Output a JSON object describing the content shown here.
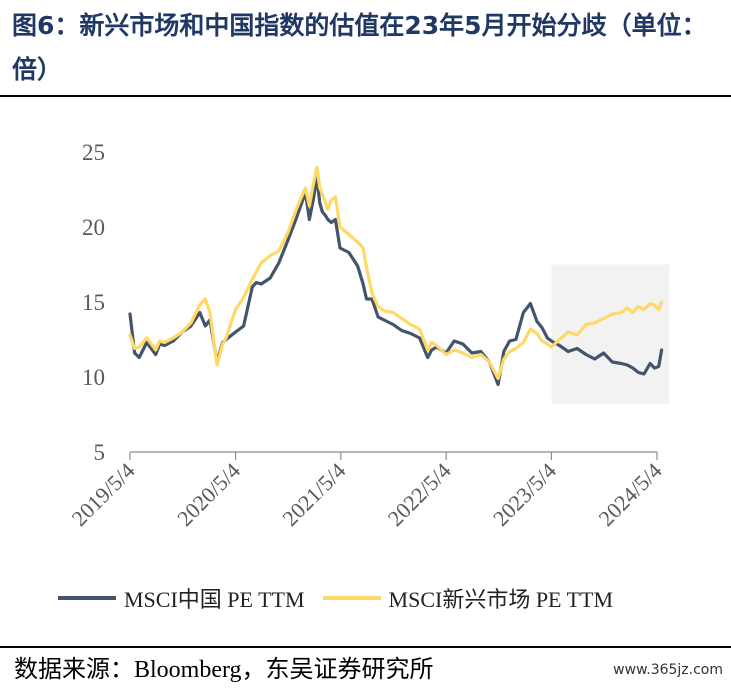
{
  "header": {
    "title": "图6：新兴市场和中国指数的估值在23年5月开始分歧（单位：倍）"
  },
  "footer": {
    "source": "数据来源：Bloomberg，东吴证券研究所",
    "watermark": "www.365jz.com"
  },
  "chart_data": {
    "type": "line",
    "title": "",
    "xlabel": "",
    "ylabel": "",
    "ylim": [
      5,
      25
    ],
    "yticks": [
      5,
      10,
      15,
      20,
      25
    ],
    "xlim": [
      "2019-05-04",
      "2024-05-20"
    ],
    "xticks": [
      "2019/5/4",
      "2020/5/4",
      "2021/5/4",
      "2022/5/4",
      "2023/5/4",
      "2024/5/4"
    ],
    "grid": false,
    "legend_position": "bottom",
    "highlight_region": {
      "x_start": "2023-05-04",
      "x_end": "2024-06-15",
      "y_start": 8.2,
      "y_end": 17.5
    },
    "series": [
      {
        "name": "MSCI中国 PE TTM",
        "color": "#44546a",
        "x": [
          "2019-05-04",
          "2019-05-20",
          "2019-06-05",
          "2019-07-01",
          "2019-08-01",
          "2019-08-15",
          "2019-09-01",
          "2019-10-01",
          "2019-11-01",
          "2019-12-01",
          "2020-01-01",
          "2020-01-20",
          "2020-02-05",
          "2020-03-01",
          "2020-03-20",
          "2020-04-01",
          "2020-05-04",
          "2020-06-01",
          "2020-07-01",
          "2020-07-15",
          "2020-08-01",
          "2020-09-01",
          "2020-10-01",
          "2020-11-01",
          "2020-12-01",
          "2021-01-01",
          "2021-01-15",
          "2021-01-28",
          "2021-02-10",
          "2021-02-20",
          "2021-03-01",
          "2021-03-10",
          "2021-03-20",
          "2021-04-01",
          "2021-04-15",
          "2021-05-01",
          "2021-06-01",
          "2021-07-01",
          "2021-07-20",
          "2021-08-01",
          "2021-08-20",
          "2021-09-10",
          "2021-10-01",
          "2021-11-01",
          "2021-12-01",
          "2022-01-01",
          "2022-02-01",
          "2022-03-01",
          "2022-03-15",
          "2022-04-01",
          "2022-05-04",
          "2022-06-01",
          "2022-07-01",
          "2022-08-01",
          "2022-09-01",
          "2022-10-01",
          "2022-10-31",
          "2022-11-20",
          "2022-12-10",
          "2023-01-01",
          "2023-01-27",
          "2023-02-20",
          "2023-03-15",
          "2023-04-01",
          "2023-04-20",
          "2023-05-04",
          "2023-06-01",
          "2023-07-01",
          "2023-08-01",
          "2023-09-01",
          "2023-10-01",
          "2023-11-01",
          "2023-12-01",
          "2024-01-01",
          "2024-01-22",
          "2024-02-10",
          "2024-03-01",
          "2024-03-20",
          "2024-04-10",
          "2024-04-25",
          "2024-05-10",
          "2024-05-20"
        ],
        "values": [
          14.2,
          11.6,
          11.3,
          12.3,
          11.5,
          12.2,
          12.1,
          12.4,
          13.0,
          13.4,
          14.3,
          13.4,
          13.8,
          11.0,
          12.3,
          12.5,
          13.0,
          13.4,
          16.0,
          16.3,
          16.2,
          16.6,
          17.6,
          19.1,
          20.6,
          22.3,
          20.5,
          21.8,
          23.3,
          21.6,
          21.0,
          20.8,
          20.5,
          20.3,
          20.5,
          18.6,
          18.3,
          17.4,
          16.2,
          15.2,
          15.2,
          14.0,
          13.8,
          13.5,
          13.1,
          12.9,
          12.6,
          11.3,
          11.8,
          12.0,
          11.6,
          12.4,
          12.2,
          11.6,
          11.7,
          11.0,
          9.5,
          11.7,
          12.4,
          12.5,
          14.3,
          14.9,
          13.7,
          13.3,
          12.6,
          12.4,
          12.1,
          11.7,
          11.9,
          11.5,
          11.2,
          11.6,
          11.0,
          10.9,
          10.8,
          10.6,
          10.3,
          10.2,
          10.9,
          10.6,
          10.7,
          11.8
        ]
      },
      {
        "name": "MSCI新兴市场 PE TTM",
        "color": "#ffd966",
        "x": [
          "2019-05-04",
          "2019-05-20",
          "2019-06-05",
          "2019-07-01",
          "2019-08-01",
          "2019-08-15",
          "2019-09-01",
          "2019-10-01",
          "2019-11-01",
          "2019-12-01",
          "2020-01-01",
          "2020-01-20",
          "2020-02-05",
          "2020-03-01",
          "2020-03-20",
          "2020-04-01",
          "2020-05-04",
          "2020-06-01",
          "2020-07-01",
          "2020-07-15",
          "2020-08-01",
          "2020-09-01",
          "2020-10-01",
          "2020-11-01",
          "2020-12-01",
          "2021-01-01",
          "2021-01-15",
          "2021-01-28",
          "2021-02-10",
          "2021-02-20",
          "2021-03-01",
          "2021-03-10",
          "2021-03-20",
          "2021-04-01",
          "2021-04-15",
          "2021-05-01",
          "2021-06-01",
          "2021-07-01",
          "2021-07-20",
          "2021-08-01",
          "2021-08-20",
          "2021-09-10",
          "2021-10-01",
          "2021-11-01",
          "2021-12-01",
          "2022-01-01",
          "2022-02-01",
          "2022-03-01",
          "2022-03-15",
          "2022-04-01",
          "2022-05-04",
          "2022-06-01",
          "2022-07-01",
          "2022-08-01",
          "2022-09-01",
          "2022-10-01",
          "2022-10-31",
          "2022-11-20",
          "2022-12-10",
          "2023-01-01",
          "2023-01-27",
          "2023-02-20",
          "2023-03-15",
          "2023-04-01",
          "2023-04-20",
          "2023-05-04",
          "2023-06-01",
          "2023-07-01",
          "2023-08-01",
          "2023-09-01",
          "2023-10-01",
          "2023-11-01",
          "2023-12-01",
          "2024-01-01",
          "2024-01-22",
          "2024-02-10",
          "2024-03-01",
          "2024-03-20",
          "2024-04-10",
          "2024-04-25",
          "2024-05-10",
          "2024-05-20"
        ],
        "values": [
          12.8,
          11.9,
          12.0,
          12.6,
          11.8,
          12.4,
          12.3,
          12.6,
          13.0,
          13.6,
          14.8,
          15.2,
          14.3,
          10.8,
          12.2,
          12.6,
          14.5,
          15.3,
          16.5,
          17.0,
          17.6,
          18.1,
          18.4,
          19.6,
          21.2,
          22.6,
          21.4,
          22.8,
          24.0,
          22.6,
          22.2,
          21.7,
          21.2,
          21.8,
          22.0,
          20.0,
          19.5,
          19.0,
          18.6,
          17.3,
          15.6,
          14.7,
          14.4,
          14.3,
          13.9,
          13.5,
          13.2,
          11.8,
          12.3,
          12.1,
          11.5,
          11.8,
          11.6,
          11.3,
          11.5,
          11.0,
          9.9,
          11.2,
          11.7,
          11.9,
          12.3,
          13.2,
          12.9,
          12.4,
          12.2,
          12.0,
          12.5,
          13.0,
          12.8,
          13.5,
          13.6,
          13.9,
          14.2,
          14.3,
          14.6,
          14.3,
          14.7,
          14.5,
          14.9,
          14.8,
          14.5,
          15.0
        ]
      }
    ]
  }
}
